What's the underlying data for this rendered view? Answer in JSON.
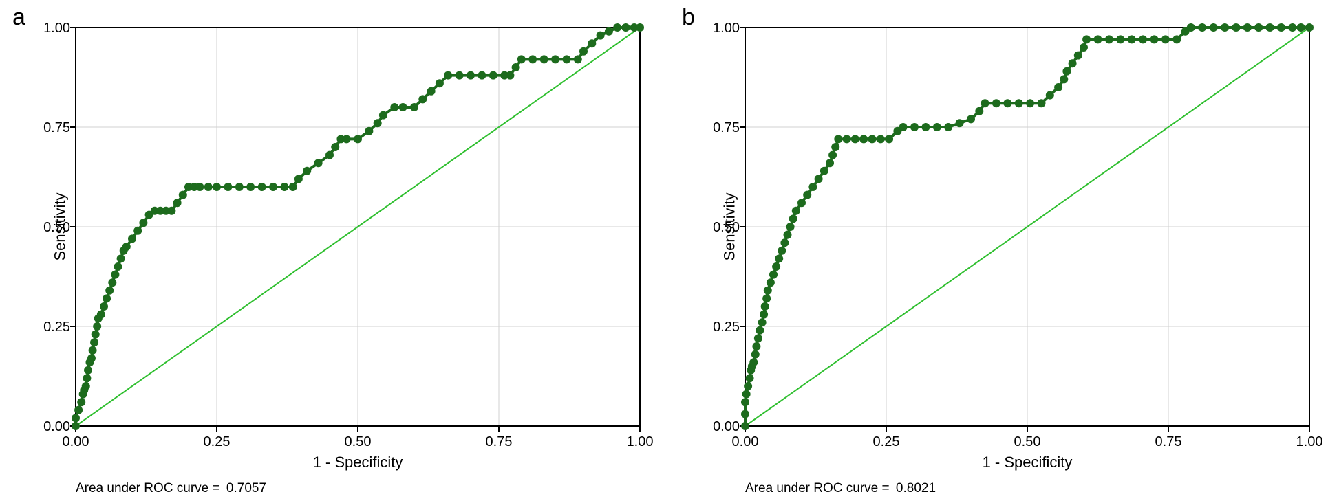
{
  "figure": {
    "panel_letters": [
      "a",
      "b"
    ],
    "ylabel": "Sensitivity",
    "xlabel": "1 - Specificity"
  },
  "styling": {
    "background_color": "#ffffff",
    "plot_bg_color": "#ffffff",
    "border_color": "#000000",
    "grid_color": "#d0d0d0",
    "curve_color": "#1d6b1d",
    "marker_color": "#1d6b1d",
    "reference_line_color": "#2fbf2f",
    "tick_fontsize": 20,
    "label_fontsize": 22,
    "letter_fontsize": 34,
    "caption_fontsize": 19,
    "xlim": [
      0.0,
      1.0
    ],
    "ylim": [
      0.0,
      1.0
    ],
    "xticks": [
      0.0,
      0.25,
      0.5,
      0.75,
      1.0
    ],
    "yticks": [
      0.0,
      0.25,
      0.5,
      0.75,
      1.0
    ],
    "xtick_labels": [
      "0.00",
      "0.25",
      "0.50",
      "0.75",
      "1.00"
    ],
    "ytick_labels": [
      "0.00",
      "0.25",
      "0.50",
      "0.75",
      "1.00"
    ],
    "line_width": 4,
    "reference_line_width": 2,
    "marker_radius": 6,
    "grid_on": true
  },
  "panel_a": {
    "type": "roc_curve",
    "auc_label": "Area under ROC curve =",
    "auc_value": "0.7057",
    "reference_line": [
      [
        0,
        0
      ],
      [
        1,
        1
      ]
    ],
    "points": [
      [
        0.0,
        0.0
      ],
      [
        0.0,
        0.02
      ],
      [
        0.005,
        0.04
      ],
      [
        0.01,
        0.06
      ],
      [
        0.013,
        0.08
      ],
      [
        0.015,
        0.09
      ],
      [
        0.018,
        0.1
      ],
      [
        0.02,
        0.12
      ],
      [
        0.022,
        0.14
      ],
      [
        0.025,
        0.16
      ],
      [
        0.028,
        0.17
      ],
      [
        0.03,
        0.19
      ],
      [
        0.033,
        0.21
      ],
      [
        0.035,
        0.23
      ],
      [
        0.038,
        0.25
      ],
      [
        0.04,
        0.27
      ],
      [
        0.045,
        0.28
      ],
      [
        0.05,
        0.3
      ],
      [
        0.055,
        0.32
      ],
      [
        0.06,
        0.34
      ],
      [
        0.065,
        0.36
      ],
      [
        0.07,
        0.38
      ],
      [
        0.075,
        0.4
      ],
      [
        0.08,
        0.42
      ],
      [
        0.085,
        0.44
      ],
      [
        0.09,
        0.45
      ],
      [
        0.1,
        0.47
      ],
      [
        0.11,
        0.49
      ],
      [
        0.12,
        0.51
      ],
      [
        0.13,
        0.53
      ],
      [
        0.14,
        0.54
      ],
      [
        0.15,
        0.54
      ],
      [
        0.16,
        0.54
      ],
      [
        0.17,
        0.54
      ],
      [
        0.18,
        0.56
      ],
      [
        0.19,
        0.58
      ],
      [
        0.2,
        0.6
      ],
      [
        0.21,
        0.6
      ],
      [
        0.22,
        0.6
      ],
      [
        0.235,
        0.6
      ],
      [
        0.25,
        0.6
      ],
      [
        0.27,
        0.6
      ],
      [
        0.29,
        0.6
      ],
      [
        0.31,
        0.6
      ],
      [
        0.33,
        0.6
      ],
      [
        0.35,
        0.6
      ],
      [
        0.37,
        0.6
      ],
      [
        0.385,
        0.6
      ],
      [
        0.395,
        0.62
      ],
      [
        0.41,
        0.64
      ],
      [
        0.43,
        0.66
      ],
      [
        0.45,
        0.68
      ],
      [
        0.46,
        0.7
      ],
      [
        0.47,
        0.72
      ],
      [
        0.48,
        0.72
      ],
      [
        0.5,
        0.72
      ],
      [
        0.52,
        0.74
      ],
      [
        0.535,
        0.76
      ],
      [
        0.545,
        0.78
      ],
      [
        0.565,
        0.8
      ],
      [
        0.58,
        0.8
      ],
      [
        0.6,
        0.8
      ],
      [
        0.615,
        0.82
      ],
      [
        0.63,
        0.84
      ],
      [
        0.645,
        0.86
      ],
      [
        0.66,
        0.88
      ],
      [
        0.68,
        0.88
      ],
      [
        0.7,
        0.88
      ],
      [
        0.72,
        0.88
      ],
      [
        0.74,
        0.88
      ],
      [
        0.76,
        0.88
      ],
      [
        0.77,
        0.88
      ],
      [
        0.78,
        0.9
      ],
      [
        0.79,
        0.92
      ],
      [
        0.81,
        0.92
      ],
      [
        0.83,
        0.92
      ],
      [
        0.85,
        0.92
      ],
      [
        0.87,
        0.92
      ],
      [
        0.89,
        0.92
      ],
      [
        0.9,
        0.94
      ],
      [
        0.915,
        0.96
      ],
      [
        0.93,
        0.98
      ],
      [
        0.945,
        0.99
      ],
      [
        0.96,
        1.0
      ],
      [
        0.975,
        1.0
      ],
      [
        0.99,
        1.0
      ],
      [
        1.0,
        1.0
      ]
    ]
  },
  "panel_b": {
    "type": "roc_curve",
    "auc_label": "Area under ROC curve =",
    "auc_value": "0.8021",
    "reference_line": [
      [
        0,
        0
      ],
      [
        1,
        1
      ]
    ],
    "points": [
      [
        0.0,
        0.0
      ],
      [
        0.0,
        0.03
      ],
      [
        0.0,
        0.06
      ],
      [
        0.002,
        0.08
      ],
      [
        0.005,
        0.1
      ],
      [
        0.008,
        0.12
      ],
      [
        0.01,
        0.14
      ],
      [
        0.012,
        0.15
      ],
      [
        0.015,
        0.16
      ],
      [
        0.018,
        0.18
      ],
      [
        0.02,
        0.2
      ],
      [
        0.023,
        0.22
      ],
      [
        0.026,
        0.24
      ],
      [
        0.03,
        0.26
      ],
      [
        0.033,
        0.28
      ],
      [
        0.035,
        0.3
      ],
      [
        0.038,
        0.32
      ],
      [
        0.04,
        0.34
      ],
      [
        0.045,
        0.36
      ],
      [
        0.05,
        0.38
      ],
      [
        0.055,
        0.4
      ],
      [
        0.06,
        0.42
      ],
      [
        0.065,
        0.44
      ],
      [
        0.07,
        0.46
      ],
      [
        0.075,
        0.48
      ],
      [
        0.08,
        0.5
      ],
      [
        0.085,
        0.52
      ],
      [
        0.09,
        0.54
      ],
      [
        0.1,
        0.56
      ],
      [
        0.11,
        0.58
      ],
      [
        0.12,
        0.6
      ],
      [
        0.13,
        0.62
      ],
      [
        0.14,
        0.64
      ],
      [
        0.15,
        0.66
      ],
      [
        0.155,
        0.68
      ],
      [
        0.16,
        0.7
      ],
      [
        0.165,
        0.72
      ],
      [
        0.18,
        0.72
      ],
      [
        0.195,
        0.72
      ],
      [
        0.21,
        0.72
      ],
      [
        0.225,
        0.72
      ],
      [
        0.24,
        0.72
      ],
      [
        0.255,
        0.72
      ],
      [
        0.27,
        0.74
      ],
      [
        0.28,
        0.75
      ],
      [
        0.3,
        0.75
      ],
      [
        0.32,
        0.75
      ],
      [
        0.34,
        0.75
      ],
      [
        0.36,
        0.75
      ],
      [
        0.38,
        0.76
      ],
      [
        0.4,
        0.77
      ],
      [
        0.415,
        0.79
      ],
      [
        0.425,
        0.81
      ],
      [
        0.445,
        0.81
      ],
      [
        0.465,
        0.81
      ],
      [
        0.485,
        0.81
      ],
      [
        0.505,
        0.81
      ],
      [
        0.525,
        0.81
      ],
      [
        0.54,
        0.83
      ],
      [
        0.555,
        0.85
      ],
      [
        0.565,
        0.87
      ],
      [
        0.57,
        0.89
      ],
      [
        0.58,
        0.91
      ],
      [
        0.59,
        0.93
      ],
      [
        0.6,
        0.95
      ],
      [
        0.605,
        0.97
      ],
      [
        0.625,
        0.97
      ],
      [
        0.645,
        0.97
      ],
      [
        0.665,
        0.97
      ],
      [
        0.685,
        0.97
      ],
      [
        0.705,
        0.97
      ],
      [
        0.725,
        0.97
      ],
      [
        0.745,
        0.97
      ],
      [
        0.765,
        0.97
      ],
      [
        0.78,
        0.99
      ],
      [
        0.79,
        1.0
      ],
      [
        0.81,
        1.0
      ],
      [
        0.83,
        1.0
      ],
      [
        0.85,
        1.0
      ],
      [
        0.87,
        1.0
      ],
      [
        0.89,
        1.0
      ],
      [
        0.91,
        1.0
      ],
      [
        0.93,
        1.0
      ],
      [
        0.95,
        1.0
      ],
      [
        0.97,
        1.0
      ],
      [
        0.985,
        1.0
      ],
      [
        1.0,
        1.0
      ]
    ]
  }
}
